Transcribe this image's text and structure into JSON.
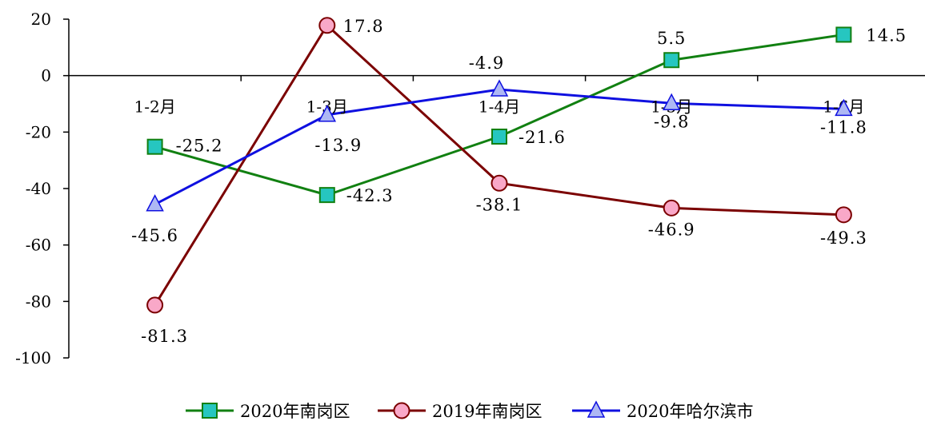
{
  "chart_data": {
    "type": "line",
    "categories": [
      "1-2月",
      "1-3月",
      "1-4月",
      "1-5月",
      "1-6月"
    ],
    "ylim": [
      -100,
      20
    ],
    "yticks": [
      20,
      0,
      -20,
      -40,
      -60,
      -80,
      -100
    ],
    "series": [
      {
        "name": "2020年南岗区",
        "values": [
          -25.2,
          -42.3,
          -21.6,
          5.5,
          14.5
        ],
        "labels": [
          "-25.2",
          "-42.3",
          "-21.6",
          "5.5",
          "14.5"
        ],
        "color": "#118011",
        "marker": "square",
        "marker_fill": "#26c6c0"
      },
      {
        "name": "2019年南岗区",
        "values": [
          -81.3,
          17.8,
          -38.1,
          -46.9,
          -49.3
        ],
        "labels": [
          "-81.3",
          "17.8",
          "-38.1",
          "-46.9",
          "-49.3"
        ],
        "color": "#7b0000",
        "marker": "circle",
        "marker_fill": "#f9a8c8"
      },
      {
        "name": "2020年哈尔滨市",
        "values": [
          -45.6,
          -13.9,
          -4.9,
          -9.8,
          -11.8
        ],
        "labels": [
          "-45.6",
          "-13.9",
          "-4.9",
          "-9.8",
          "-11.8"
        ],
        "color": "#0f10e0",
        "marker": "triangle",
        "marker_fill": "#aeb8f4"
      }
    ],
    "legend": "bottom",
    "grid": false
  }
}
